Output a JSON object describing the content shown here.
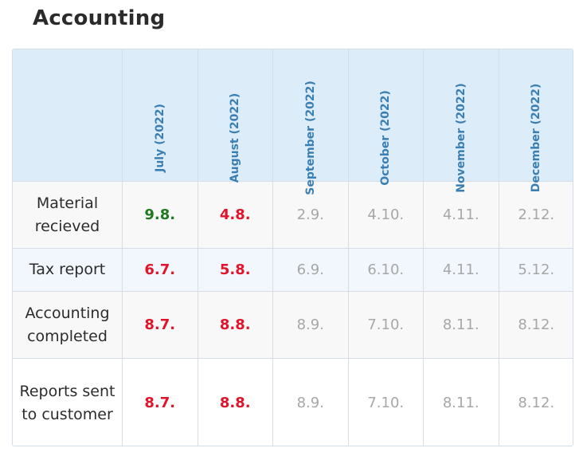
{
  "page": {
    "title": "Accounting"
  },
  "table": {
    "columns": [
      {
        "label": ""
      },
      {
        "label": "July (2022)"
      },
      {
        "label": "August (2022)"
      },
      {
        "label": "September (2022)"
      },
      {
        "label": "October (2022)"
      },
      {
        "label": "November (2022)"
      },
      {
        "label": "December (2022)"
      }
    ],
    "rows": [
      {
        "label": "Material recieved",
        "cells": [
          {
            "value": "9.8.",
            "status": "green"
          },
          {
            "value": "4.8.",
            "status": "red"
          },
          {
            "value": "2.9.",
            "status": "gray"
          },
          {
            "value": "4.10.",
            "status": "gray"
          },
          {
            "value": "4.11.",
            "status": "gray"
          },
          {
            "value": "2.12.",
            "status": "gray"
          }
        ]
      },
      {
        "label": "Tax report",
        "cells": [
          {
            "value": "6.7.",
            "status": "red"
          },
          {
            "value": "5.8.",
            "status": "red"
          },
          {
            "value": "6.9.",
            "status": "gray"
          },
          {
            "value": "6.10.",
            "status": "gray"
          },
          {
            "value": "4.11.",
            "status": "gray"
          },
          {
            "value": "5.12.",
            "status": "gray"
          }
        ]
      },
      {
        "label": "Accounting completed",
        "cells": [
          {
            "value": "8.7.",
            "status": "red"
          },
          {
            "value": "8.8.",
            "status": "red"
          },
          {
            "value": "8.9.",
            "status": "gray"
          },
          {
            "value": "7.10.",
            "status": "gray"
          },
          {
            "value": "8.11.",
            "status": "gray"
          },
          {
            "value": "8.12.",
            "status": "gray"
          }
        ]
      },
      {
        "label": "Reports sent to customer",
        "cells": [
          {
            "value": "8.7.",
            "status": "red"
          },
          {
            "value": "8.8.",
            "status": "red"
          },
          {
            "value": "8.9.",
            "status": "gray"
          },
          {
            "value": "7.10.",
            "status": "gray"
          },
          {
            "value": "8.11.",
            "status": "gray"
          },
          {
            "value": "8.12.",
            "status": "gray"
          }
        ]
      }
    ]
  },
  "colors": {
    "header_bg": "#dcecf9",
    "header_text": "#3a7fb4",
    "on_time": "#1f7a1f",
    "late": "#e0152b",
    "planned": "#a7a7a7",
    "border": "#d6dde6"
  }
}
